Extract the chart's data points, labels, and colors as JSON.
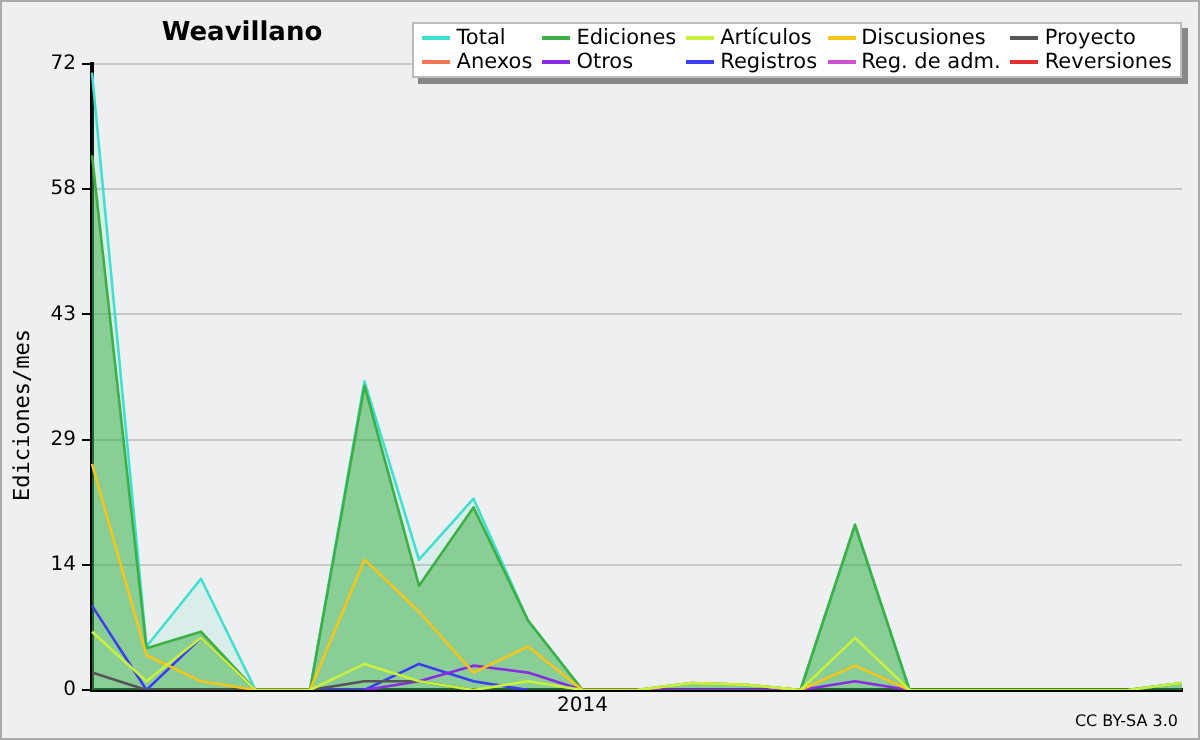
{
  "chart_data": {
    "type": "line",
    "title": "Weavillano",
    "ylabel": "Ediciones/mes",
    "categories": [
      null,
      null,
      null,
      null,
      null,
      null,
      null,
      null,
      null,
      "2014",
      null,
      null,
      null,
      null,
      null,
      null,
      null,
      null,
      null,
      null,
      null
    ],
    "ylim": [
      0,
      72
    ],
    "yticks": [
      0,
      {
        "value": 14.4,
        "label": "14"
      },
      {
        "value": 28.8,
        "label": "29"
      },
      {
        "value": 43.2,
        "label": "43"
      },
      {
        "value": 57.6,
        "label": "58"
      },
      72
    ],
    "grid": "y",
    "legend": "top right",
    "annotations": [
      "CC BY-SA 3.0"
    ],
    "series": [
      {
        "name": "Total",
        "color": "#40e0d0",
        "type": "area",
        "values": [
          71,
          5,
          12.8,
          0,
          0,
          35.5,
          15,
          22,
          8,
          0,
          0,
          0.8,
          0.6,
          0,
          19,
          0,
          0,
          0,
          0,
          0,
          0.8
        ]
      },
      {
        "name": "Ediciones",
        "color": "#3cb043",
        "type": "area",
        "values": [
          61.5,
          4.8,
          6.7,
          0,
          0,
          35,
          12,
          21,
          8,
          0,
          0,
          0.8,
          0.6,
          0,
          19,
          0,
          0,
          0,
          0,
          0,
          0.8
        ]
      },
      {
        "name": "Artículos",
        "color": "#c8f03c",
        "type": "line",
        "values": [
          6.7,
          1,
          6,
          0,
          0,
          3,
          1,
          0,
          1,
          0,
          0,
          0.8,
          0.6,
          0,
          6,
          0,
          0,
          0,
          0,
          0,
          0.8
        ]
      },
      {
        "name": "Discusiones",
        "color": "#f5c518",
        "type": "line",
        "values": [
          26,
          4,
          1,
          0,
          0,
          15,
          9,
          2,
          5,
          0,
          0,
          0.8,
          0.6,
          0,
          2.8,
          0,
          null,
          null,
          null,
          null,
          null
        ]
      },
      {
        "name": "Proyecto",
        "color": "#555555",
        "type": "line",
        "values": [
          2,
          0,
          0,
          0,
          0,
          1,
          1,
          0,
          null,
          null,
          null,
          null,
          null,
          null,
          null,
          null,
          null,
          null,
          null,
          null,
          null
        ]
      },
      {
        "name": "Anexos",
        "color": "#f07850",
        "type": "line",
        "values": [
          null,
          null,
          null,
          null,
          null,
          null,
          null,
          null,
          null,
          null,
          null,
          null,
          null,
          null,
          null,
          null,
          null,
          null,
          null,
          null,
          null
        ]
      },
      {
        "name": "Otros",
        "color": "#8a2be2",
        "type": "line",
        "values": [
          null,
          null,
          null,
          null,
          null,
          0,
          1,
          2.8,
          2,
          0,
          0,
          0,
          0,
          0,
          1,
          0,
          null,
          null,
          null,
          null,
          null
        ]
      },
      {
        "name": "Registros",
        "color": "#3c3cf0",
        "type": "line",
        "values": [
          9.7,
          0,
          6,
          0,
          0,
          0,
          3,
          1,
          0,
          null,
          null,
          null,
          null,
          null,
          null,
          null,
          null,
          null,
          null,
          null,
          null
        ]
      },
      {
        "name": "Reg. de adm.",
        "color": "#d050d0",
        "type": "line",
        "values": [
          null,
          null,
          null,
          null,
          null,
          null,
          null,
          null,
          null,
          null,
          null,
          null,
          null,
          null,
          null,
          null,
          null,
          null,
          null,
          null,
          null
        ]
      },
      {
        "name": "Reversiones",
        "color": "#e03030",
        "type": "line",
        "values": [
          null,
          null,
          null,
          null,
          null,
          null,
          null,
          null,
          null,
          null,
          null,
          null,
          null,
          null,
          null,
          null,
          null,
          null,
          null,
          null,
          null
        ]
      }
    ]
  }
}
